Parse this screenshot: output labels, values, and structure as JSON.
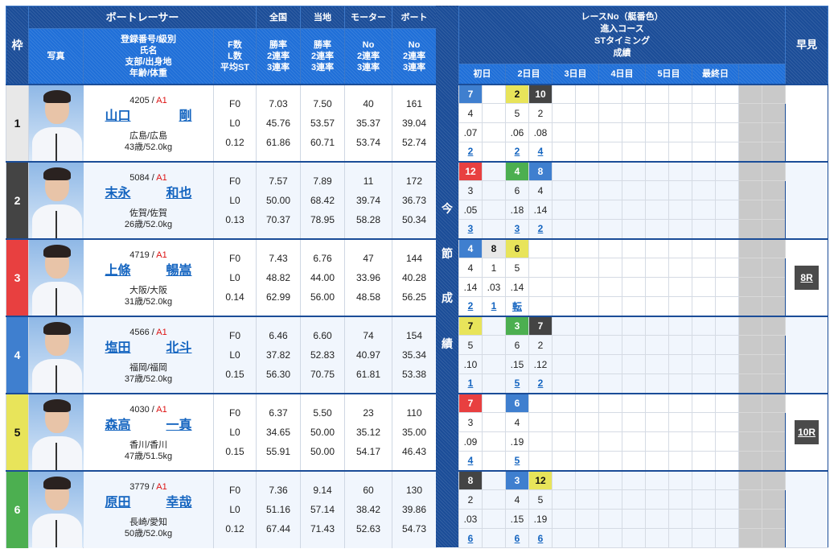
{
  "header": {
    "waku": "枠",
    "racer": "ボートレーサー",
    "national": "全国",
    "local": "当地",
    "motor": "モーター",
    "boat": "ボート",
    "photo": "写真",
    "racer_sub": [
      "登録番号/級別",
      "氏名",
      "支部/出身地",
      "年齢/体重"
    ],
    "fl_sub": [
      "F数",
      "L数",
      "平均ST"
    ],
    "national_sub": [
      "勝率",
      "2連率",
      "3連率"
    ],
    "local_sub": [
      "勝率",
      "2連率",
      "3連率"
    ],
    "motor_sub": [
      "No",
      "2連率",
      "3連率"
    ],
    "boat_sub": [
      "No",
      "2連率",
      "3連率"
    ],
    "race_title": [
      "レースNo（艇番色）",
      "進入コース",
      "STタイミング",
      "成績"
    ],
    "days": [
      "初日",
      "2日目",
      "3日目",
      "4日目",
      "5日目",
      "最終日",
      ""
    ],
    "hayami": "早見",
    "band": [
      "今",
      "節",
      "成",
      "績"
    ]
  },
  "colors": {
    "1": "#e8e8e8",
    "2": "#444444",
    "3": "#e84040",
    "4": "#3f7fcf",
    "5": "#e8e45a",
    "6": "#4caf50",
    "header": "#1b4d98",
    "header2": "#1f6fd8"
  },
  "racers": [
    {
      "waku": "1",
      "reg": "4205",
      "cls": "A1",
      "last": "山口",
      "first": "剛",
      "branch": "広島/広島",
      "age_weight": "43歳/52.0kg",
      "f": "F0",
      "l": "L0",
      "st": "0.12",
      "national": [
        "7.03",
        "45.76",
        "61.86"
      ],
      "local": [
        "7.50",
        "53.57",
        "60.71"
      ],
      "motor": [
        "40",
        "35.37",
        "53.74"
      ],
      "boat": [
        "161",
        "39.04",
        "52.74"
      ],
      "races": [
        {
          "no": "7",
          "boat": "4",
          "course": "4",
          "st": ".07",
          "result": "2"
        },
        null,
        {
          "no": "2",
          "boat": "5",
          "course": "5",
          "st": ".06",
          "result": "2"
        },
        {
          "no": "10",
          "boat": "2",
          "course": "2",
          "st": ".08",
          "result": "4"
        }
      ],
      "hayami": ""
    },
    {
      "waku": "2",
      "reg": "5084",
      "cls": "A1",
      "last": "末永",
      "first": "和也",
      "branch": "佐賀/佐賀",
      "age_weight": "26歳/52.0kg",
      "f": "F0",
      "l": "L0",
      "st": "0.13",
      "national": [
        "7.57",
        "50.00",
        "70.37"
      ],
      "local": [
        "7.89",
        "68.42",
        "78.95"
      ],
      "motor": [
        "11",
        "39.74",
        "58.28"
      ],
      "boat": [
        "172",
        "36.73",
        "50.34"
      ],
      "races": [
        {
          "no": "12",
          "boat": "3",
          "course": "3",
          "st": ".05",
          "result": "3"
        },
        null,
        {
          "no": "4",
          "boat": "6",
          "course": "6",
          "st": ".18",
          "result": "3"
        },
        {
          "no": "8",
          "boat": "4",
          "course": "4",
          "st": ".14",
          "result": "2"
        }
      ],
      "hayami": ""
    },
    {
      "waku": "3",
      "reg": "4719",
      "cls": "A1",
      "last": "上條",
      "first": "暢嵩",
      "branch": "大阪/大阪",
      "age_weight": "31歳/52.0kg",
      "f": "F0",
      "l": "L0",
      "st": "0.14",
      "national": [
        "7.43",
        "48.82",
        "62.99"
      ],
      "local": [
        "6.76",
        "44.00",
        "56.00"
      ],
      "motor": [
        "47",
        "33.96",
        "48.58"
      ],
      "boat": [
        "144",
        "40.28",
        "56.25"
      ],
      "races": [
        {
          "no": "4",
          "boat": "4",
          "course": "4",
          "st": ".14",
          "result": "2"
        },
        {
          "no": "8",
          "boat": "1",
          "course": "1",
          "st": ".03",
          "result": "1"
        },
        {
          "no": "6",
          "boat": "5",
          "course": "5",
          "st": ".14",
          "result": "転"
        },
        null
      ],
      "hayami": "8R"
    },
    {
      "waku": "4",
      "reg": "4566",
      "cls": "A1",
      "last": "塩田",
      "first": "北斗",
      "branch": "福岡/福岡",
      "age_weight": "37歳/52.0kg",
      "f": "F0",
      "l": "L0",
      "st": "0.15",
      "national": [
        "6.46",
        "37.82",
        "56.30"
      ],
      "local": [
        "6.60",
        "52.83",
        "70.75"
      ],
      "motor": [
        "74",
        "40.97",
        "61.81"
      ],
      "boat": [
        "154",
        "35.34",
        "53.38"
      ],
      "races": [
        {
          "no": "7",
          "boat": "5",
          "course": "5",
          "st": ".10",
          "result": "1"
        },
        null,
        {
          "no": "3",
          "boat": "6",
          "course": "6",
          "st": ".15",
          "result": "5"
        },
        {
          "no": "7",
          "boat": "2",
          "course": "2",
          "st": ".12",
          "result": "2"
        }
      ],
      "hayami": ""
    },
    {
      "waku": "5",
      "reg": "4030",
      "cls": "A1",
      "last": "森高",
      "first": "一真",
      "branch": "香川/香川",
      "age_weight": "47歳/51.5kg",
      "f": "F0",
      "l": "L0",
      "st": "0.15",
      "national": [
        "6.37",
        "34.65",
        "55.91"
      ],
      "local": [
        "5.50",
        "50.00",
        "50.00"
      ],
      "motor": [
        "23",
        "35.12",
        "54.17"
      ],
      "boat": [
        "110",
        "35.00",
        "46.43"
      ],
      "races": [
        {
          "no": "7",
          "boat": "3",
          "course": "3",
          "st": ".09",
          "result": "4"
        },
        null,
        {
          "no": "6",
          "boat": "4",
          "course": "4",
          "st": ".19",
          "result": "5"
        },
        null
      ],
      "hayami": "10R"
    },
    {
      "waku": "6",
      "reg": "3779",
      "cls": "A1",
      "last": "原田",
      "first": "幸哉",
      "branch": "長崎/愛知",
      "age_weight": "50歳/52.0kg",
      "f": "F0",
      "l": "L0",
      "st": "0.12",
      "national": [
        "7.36",
        "51.16",
        "67.44"
      ],
      "local": [
        "9.14",
        "57.14",
        "71.43"
      ],
      "motor": [
        "60",
        "38.42",
        "52.63"
      ],
      "boat": [
        "130",
        "39.86",
        "54.73"
      ],
      "races": [
        {
          "no": "8",
          "boat": "2",
          "course": "2",
          "st": ".03",
          "result": "6"
        },
        null,
        {
          "no": "3",
          "boat": "4",
          "course": "4",
          "st": ".15",
          "result": "6"
        },
        {
          "no": "12",
          "boat": "5",
          "course": "5",
          "st": ".19",
          "result": "6"
        }
      ],
      "hayami": ""
    }
  ]
}
